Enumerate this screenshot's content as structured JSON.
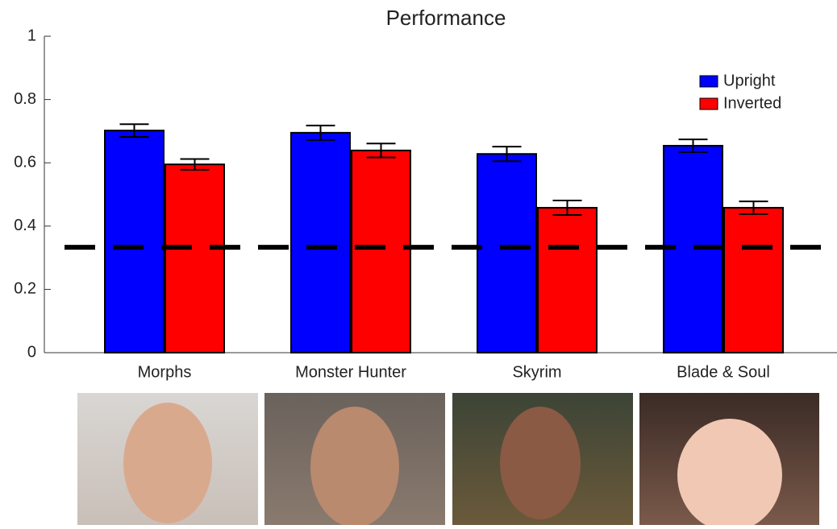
{
  "chart_data": {
    "type": "bar",
    "title": "Performance",
    "categories": [
      "Morphs",
      "Monster Hunter",
      "Skyrim",
      "Blade & Soul"
    ],
    "series": [
      {
        "name": "Upright",
        "color": "#0000ff",
        "values": [
          0.702,
          0.695,
          0.628,
          0.654
        ],
        "errors": [
          0.02,
          0.023,
          0.023,
          0.02
        ]
      },
      {
        "name": "Inverted",
        "color": "#ff0000",
        "values": [
          0.595,
          0.639,
          0.458,
          0.458
        ],
        "errors": [
          0.017,
          0.022,
          0.023,
          0.02
        ]
      }
    ],
    "reference_line": 0.333,
    "ylim": [
      0,
      1
    ],
    "yticks": [
      0,
      0.2,
      0.4,
      0.6,
      0.8,
      1
    ],
    "legend": "top-right"
  }
}
